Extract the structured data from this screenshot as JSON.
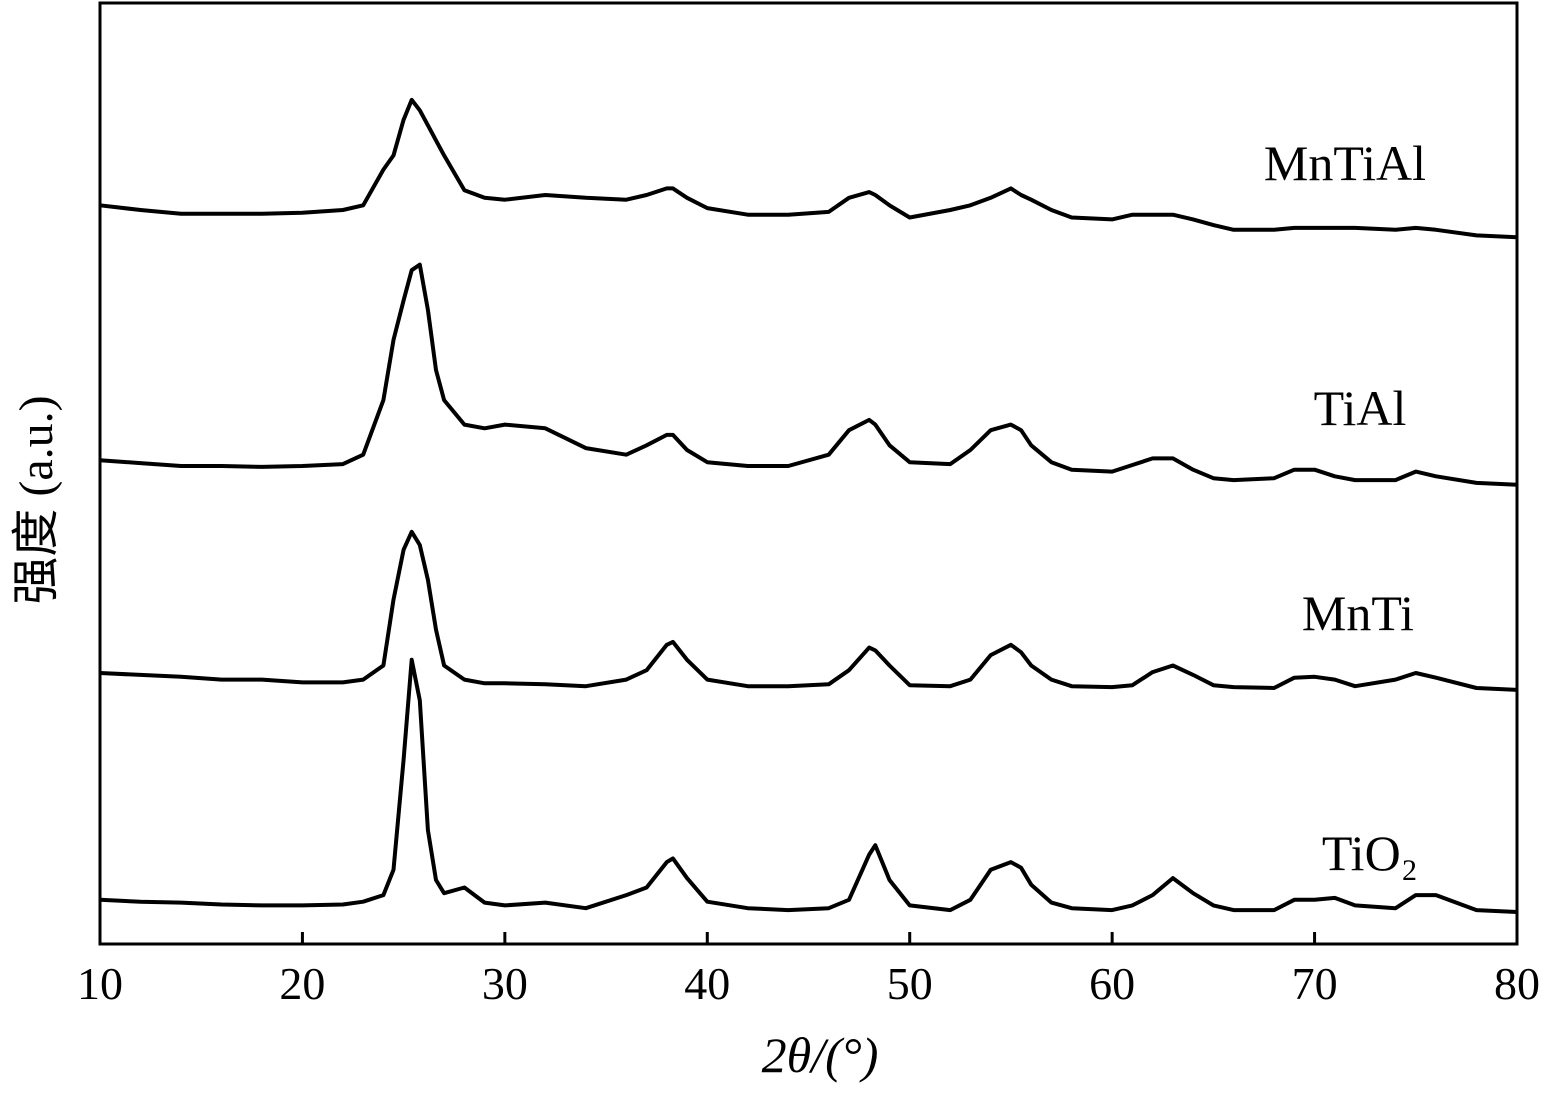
{
  "chart_data": {
    "type": "line",
    "xlabel": "2θ/(°)",
    "ylabel": "强度 (a.u.)",
    "x": [
      10,
      12,
      14,
      16,
      18,
      20,
      22,
      23,
      24,
      24.5,
      25,
      25.4,
      25.8,
      26.2,
      26.6,
      27,
      28,
      29,
      30,
      32,
      34,
      36,
      37,
      38,
      38.3,
      39,
      40,
      42,
      44,
      46,
      47,
      48,
      48.3,
      49,
      50,
      52,
      53,
      54,
      55,
      55.5,
      56,
      57,
      58,
      60,
      61,
      62,
      63,
      64,
      65,
      66,
      68,
      69,
      70,
      71,
      72,
      74,
      75,
      76,
      78,
      80
    ],
    "xlim": [
      10,
      80
    ],
    "xticks": [
      10,
      20,
      30,
      40,
      50,
      60,
      70,
      80
    ],
    "ylim": [
      0,
      100
    ],
    "series": [
      {
        "name": "MnTiAl",
        "color": "#000000",
        "values": [
          78.5,
          78.0,
          77.6,
          77.6,
          77.6,
          77.7,
          78.0,
          78.5,
          82.3,
          83.8,
          87.6,
          89.7,
          88.6,
          87.0,
          85.4,
          83.8,
          80.1,
          79.3,
          79.1,
          79.6,
          79.3,
          79.1,
          79.6,
          80.3,
          80.3,
          79.3,
          78.2,
          77.5,
          77.5,
          77.8,
          79.3,
          79.9,
          79.6,
          78.5,
          77.2,
          78.0,
          78.5,
          79.3,
          80.3,
          79.6,
          79.1,
          78.0,
          77.2,
          77.0,
          77.5,
          77.5,
          77.5,
          77.0,
          76.4,
          75.9,
          75.9,
          76.1,
          76.1,
          76.1,
          76.1,
          75.9,
          76.1,
          75.9,
          75.3,
          75.1
        ]
      },
      {
        "name": "TiAl",
        "color": "#000000",
        "values": [
          51.4,
          51.1,
          50.8,
          50.8,
          50.7,
          50.8,
          51.0,
          52.0,
          57.8,
          64.2,
          68.4,
          71.6,
          72.2,
          67.4,
          61.0,
          57.8,
          55.2,
          54.8,
          55.2,
          54.8,
          52.7,
          52.0,
          53.0,
          54.1,
          54.1,
          52.5,
          51.2,
          50.8,
          50.8,
          52.0,
          54.6,
          55.7,
          55.2,
          53.0,
          51.2,
          51.0,
          52.5,
          54.6,
          55.2,
          54.6,
          53.0,
          51.2,
          50.4,
          50.2,
          50.9,
          51.6,
          51.6,
          50.4,
          49.5,
          49.3,
          49.5,
          50.4,
          50.4,
          49.7,
          49.3,
          49.3,
          50.2,
          49.7,
          49.0,
          48.8
        ]
      },
      {
        "name": "MnTi",
        "color": "#000000",
        "values": [
          28.8,
          28.6,
          28.4,
          28.1,
          28.1,
          27.8,
          27.8,
          28.1,
          29.6,
          36.6,
          41.9,
          43.8,
          42.4,
          38.7,
          33.4,
          29.6,
          28.1,
          27.7,
          27.7,
          27.6,
          27.4,
          28.1,
          29.1,
          31.8,
          32.1,
          30.2,
          28.1,
          27.4,
          27.4,
          27.6,
          29.1,
          31.5,
          31.2,
          29.6,
          27.5,
          27.4,
          28.1,
          30.7,
          31.8,
          31.0,
          29.6,
          28.1,
          27.4,
          27.3,
          27.5,
          28.9,
          29.6,
          28.6,
          27.5,
          27.3,
          27.2,
          28.3,
          28.4,
          28.1,
          27.4,
          28.1,
          28.8,
          28.3,
          27.2,
          27.0
        ]
      },
      {
        "name": "TiO₂",
        "color": "#000000",
        "values": [
          4.7,
          4.5,
          4.4,
          4.2,
          4.1,
          4.1,
          4.2,
          4.5,
          5.2,
          7.9,
          19.6,
          30.2,
          25.9,
          12.1,
          6.8,
          5.4,
          6.0,
          4.4,
          4.1,
          4.4,
          3.8,
          5.2,
          6.0,
          8.7,
          9.1,
          7.0,
          4.5,
          3.8,
          3.6,
          3.8,
          4.7,
          9.5,
          10.5,
          6.8,
          4.1,
          3.6,
          4.7,
          7.9,
          8.7,
          8.1,
          6.3,
          4.4,
          3.8,
          3.6,
          4.1,
          5.2,
          7.0,
          5.4,
          4.1,
          3.6,
          3.6,
          4.7,
          4.7,
          4.9,
          4.1,
          3.8,
          5.2,
          5.2,
          3.6,
          3.4
        ]
      }
    ]
  }
}
